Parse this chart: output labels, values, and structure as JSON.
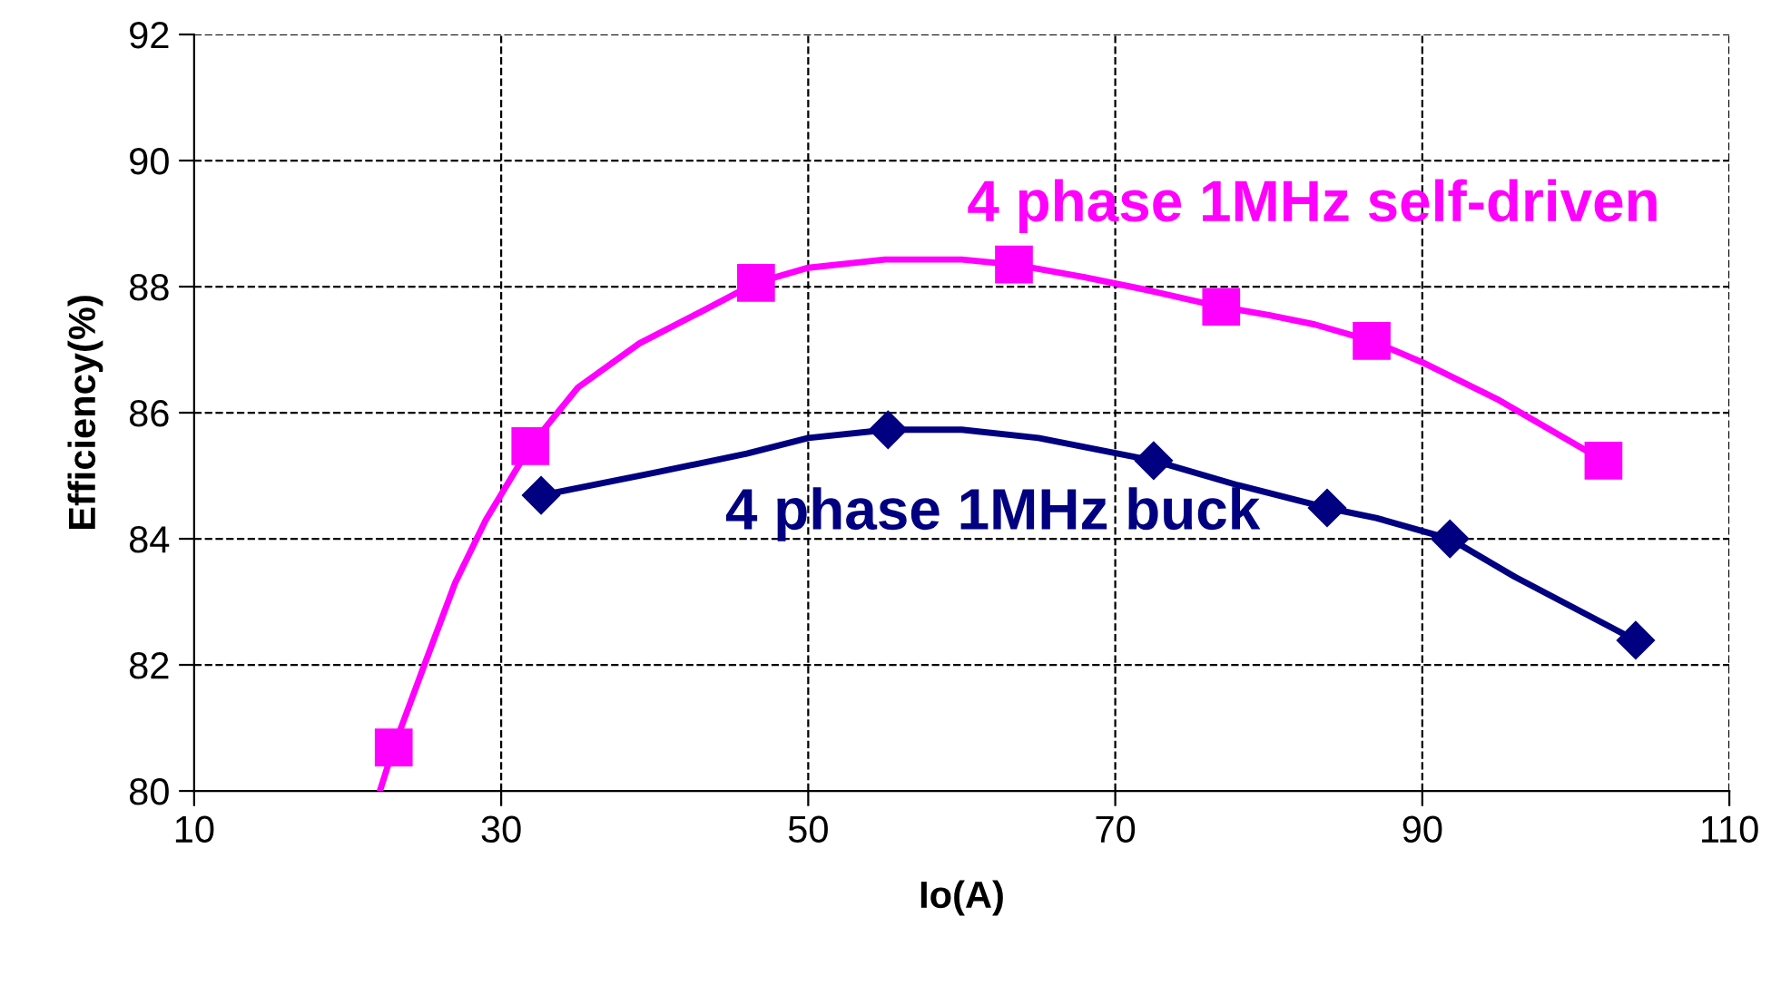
{
  "chart_data": {
    "type": "line",
    "xlabel": "Io(A)",
    "ylabel": "Efficiency(%)",
    "xlim": [
      10,
      110
    ],
    "xticks": [
      10,
      30,
      50,
      70,
      90,
      110
    ],
    "ylim": [
      80,
      92
    ],
    "yticks": [
      80,
      82,
      84,
      86,
      88,
      90,
      92
    ],
    "grid": true,
    "line_style": "solid",
    "series": [
      {
        "name": "4 phase 1MHz self-driven",
        "color": "#ff00ff",
        "marker": "none",
        "x": [
          22.1,
          23.0,
          25,
          27,
          29,
          31.9,
          35,
          39,
          43,
          46.6,
          50,
          55,
          60,
          63.4,
          68,
          72,
          76.9,
          80,
          83,
          86.7,
          90,
          95,
          101.8
        ],
        "values": [
          80.0,
          80.69,
          82.0,
          83.3,
          84.3,
          85.47,
          86.4,
          87.1,
          87.6,
          88.06,
          88.3,
          88.43,
          88.43,
          88.35,
          88.15,
          87.95,
          87.68,
          87.55,
          87.4,
          87.14,
          86.8,
          86.2,
          85.24
        ]
      },
      {
        "name": "4 phase 1MHz buck",
        "color": "#000080",
        "marker": "none",
        "x": [
          32.6,
          40,
          46,
          50,
          55.2,
          60,
          65,
          72.5,
          78,
          83.8,
          87,
          91.8,
          96,
          103.9
        ],
        "values": [
          84.69,
          85.05,
          85.35,
          85.6,
          85.73,
          85.73,
          85.6,
          85.24,
          84.85,
          84.49,
          84.33,
          84.0,
          83.4,
          82.39
        ]
      },
      {
        "type": "scatter",
        "color": "#ff00ff",
        "marker": "square",
        "x": [
          23.0,
          31.9,
          46.6,
          63.4,
          76.9,
          86.7,
          101.8
        ],
        "values": [
          80.69,
          85.47,
          88.06,
          88.35,
          87.68,
          87.14,
          85.24
        ]
      },
      {
        "type": "scatter",
        "color": "#000080",
        "marker": "diamond",
        "x": [
          32.6,
          55.2,
          72.5,
          83.8,
          91.8,
          103.9
        ],
        "values": [
          84.69,
          85.73,
          85.24,
          84.49,
          84.0,
          82.39
        ]
      }
    ]
  }
}
